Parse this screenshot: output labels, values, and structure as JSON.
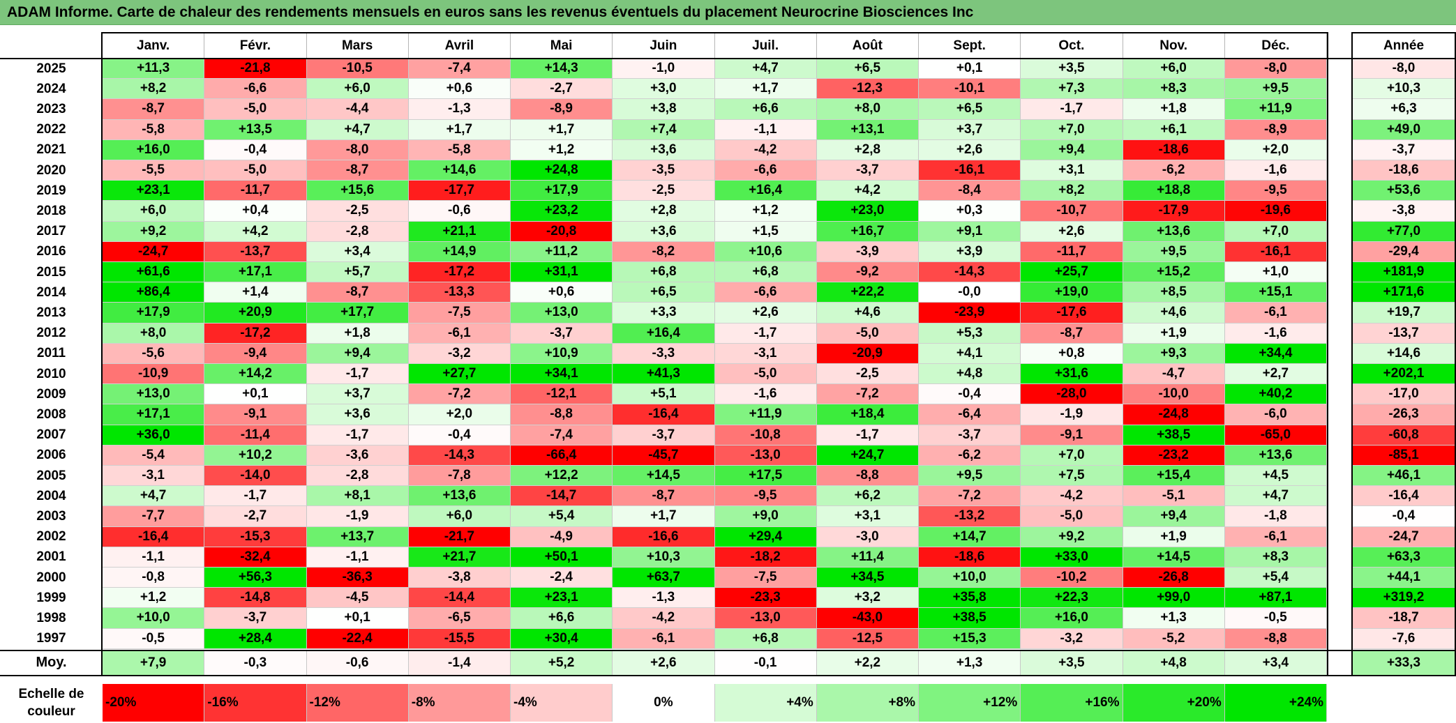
{
  "title": "ADAM Informe. Carte de chaleur des rendements mensuels en euros sans les revenus éventuels du placement Neurocrine Biosciences Inc",
  "colors": {
    "title_bg": "#7dc57d",
    "negative_max": "#ff0000",
    "neutral": "#ffffff",
    "positive_max": "#00e600"
  },
  "chart_data": {
    "type": "heatmap",
    "columns": [
      "Janv.",
      "Févr.",
      "Mars",
      "Avril",
      "Mai",
      "Juin",
      "Juil.",
      "Août",
      "Sept.",
      "Oct.",
      "Nov.",
      "Déc."
    ],
    "annual_header": "Année",
    "rows": [
      {
        "year": "2025",
        "values": [
          "+11,3",
          "-21,8",
          "-10,5",
          "-7,4",
          "+14,3",
          "-1,0",
          "+4,7",
          "+6,5",
          "+0,1",
          "+3,5",
          "+6,0",
          "-8,0"
        ],
        "annual": "-8,0"
      },
      {
        "year": "2024",
        "values": [
          "+8,2",
          "-6,6",
          "+6,0",
          "+0,6",
          "-2,7",
          "+3,0",
          "+1,7",
          "-12,3",
          "-10,1",
          "+7,3",
          "+8,3",
          "+9,5"
        ],
        "annual": "+10,3"
      },
      {
        "year": "2023",
        "values": [
          "-8,7",
          "-5,0",
          "-4,4",
          "-1,3",
          "-8,9",
          "+3,8",
          "+6,6",
          "+8,0",
          "+6,5",
          "-1,7",
          "+1,8",
          "+11,9"
        ],
        "annual": "+6,3"
      },
      {
        "year": "2022",
        "values": [
          "-5,8",
          "+13,5",
          "+4,7",
          "+1,7",
          "+1,7",
          "+7,4",
          "-1,1",
          "+13,1",
          "+3,7",
          "+7,0",
          "+6,1",
          "-8,9"
        ],
        "annual": "+49,0"
      },
      {
        "year": "2021",
        "values": [
          "+16,0",
          "-0,4",
          "-8,0",
          "-5,8",
          "+1,2",
          "+3,6",
          "-4,2",
          "+2,8",
          "+2,6",
          "+9,4",
          "-18,6",
          "+2,0"
        ],
        "annual": "-3,7"
      },
      {
        "year": "2020",
        "values": [
          "-5,5",
          "-5,0",
          "-8,7",
          "+14,6",
          "+24,8",
          "-3,5",
          "-6,6",
          "-3,7",
          "-16,1",
          "+3,1",
          "-6,2",
          "-1,6"
        ],
        "annual": "-18,6"
      },
      {
        "year": "2019",
        "values": [
          "+23,1",
          "-11,7",
          "+15,6",
          "-17,7",
          "+17,9",
          "-2,5",
          "+16,4",
          "+4,2",
          "-8,4",
          "+8,2",
          "+18,8",
          "-9,5"
        ],
        "annual": "+53,6"
      },
      {
        "year": "2018",
        "values": [
          "+6,0",
          "+0,4",
          "-2,5",
          "-0,6",
          "+23,2",
          "+2,8",
          "+1,2",
          "+23,0",
          "+0,3",
          "-10,7",
          "-17,9",
          "-19,6"
        ],
        "annual": "-3,8"
      },
      {
        "year": "2017",
        "values": [
          "+9,2",
          "+4,2",
          "-2,8",
          "+21,1",
          "-20,8",
          "+3,6",
          "+1,5",
          "+16,7",
          "+9,1",
          "+2,6",
          "+13,6",
          "+7,0"
        ],
        "annual": "+77,0"
      },
      {
        "year": "2016",
        "values": [
          "-24,7",
          "-13,7",
          "+3,4",
          "+14,9",
          "+11,2",
          "-8,2",
          "+10,6",
          "-3,9",
          "+3,9",
          "-11,7",
          "+9,5",
          "-16,1"
        ],
        "annual": "-29,4"
      },
      {
        "year": "2015",
        "values": [
          "+61,6",
          "+17,1",
          "+5,7",
          "-17,2",
          "+31,1",
          "+6,8",
          "+6,8",
          "-9,2",
          "-14,3",
          "+25,7",
          "+15,2",
          "+1,0"
        ],
        "annual": "+181,9"
      },
      {
        "year": "2014",
        "values": [
          "+86,4",
          "+1,4",
          "-8,7",
          "-13,3",
          "+0,6",
          "+6,5",
          "-6,6",
          "+22,2",
          "-0,0",
          "+19,0",
          "+8,5",
          "+15,1"
        ],
        "annual": "+171,6"
      },
      {
        "year": "2013",
        "values": [
          "+17,9",
          "+20,9",
          "+17,7",
          "-7,5",
          "+13,0",
          "+3,3",
          "+2,6",
          "+4,6",
          "-23,9",
          "-17,6",
          "+4,6",
          "-6,1"
        ],
        "annual": "+19,7"
      },
      {
        "year": "2012",
        "values": [
          "+8,0",
          "-17,2",
          "+1,8",
          "-6,1",
          "-3,7",
          "+16,4",
          "-1,7",
          "-5,0",
          "+5,3",
          "-8,7",
          "+1,9",
          "-1,6"
        ],
        "annual": "-13,7"
      },
      {
        "year": "2011",
        "values": [
          "-5,6",
          "-9,4",
          "+9,4",
          "-3,2",
          "+10,9",
          "-3,3",
          "-3,1",
          "-20,9",
          "+4,1",
          "+0,8",
          "+9,3",
          "+34,4"
        ],
        "annual": "+14,6"
      },
      {
        "year": "2010",
        "values": [
          "-10,9",
          "+14,2",
          "-1,7",
          "+27,7",
          "+34,1",
          "+41,3",
          "-5,0",
          "-2,5",
          "+4,8",
          "+31,6",
          "-4,7",
          "+2,7"
        ],
        "annual": "+202,1"
      },
      {
        "year": "2009",
        "values": [
          "+13,0",
          "+0,1",
          "+3,7",
          "-7,2",
          "-12,1",
          "+5,1",
          "-1,6",
          "-7,2",
          "-0,4",
          "-28,0",
          "-10,0",
          "+40,2"
        ],
        "annual": "-17,0"
      },
      {
        "year": "2008",
        "values": [
          "+17,1",
          "-9,1",
          "+3,6",
          "+2,0",
          "-8,8",
          "-16,4",
          "+11,9",
          "+18,4",
          "-6,4",
          "-1,9",
          "-24,8",
          "-6,0"
        ],
        "annual": "-26,3"
      },
      {
        "year": "2007",
        "values": [
          "+36,0",
          "-11,4",
          "-1,7",
          "-0,4",
          "-7,4",
          "-3,7",
          "-10,8",
          "-1,7",
          "-3,7",
          "-9,1",
          "+38,5",
          "-65,0"
        ],
        "annual": "-60,8"
      },
      {
        "year": "2006",
        "values": [
          "-5,4",
          "+10,2",
          "-3,6",
          "-14,3",
          "-66,4",
          "-45,7",
          "-13,0",
          "+24,7",
          "-6,2",
          "+7,0",
          "-23,2",
          "+13,6"
        ],
        "annual": "-85,1"
      },
      {
        "year": "2005",
        "values": [
          "-3,1",
          "-14,0",
          "-2,8",
          "-7,8",
          "+12,2",
          "+14,5",
          "+17,5",
          "-8,8",
          "+9,5",
          "+7,5",
          "+15,4",
          "+4,5"
        ],
        "annual": "+46,1"
      },
      {
        "year": "2004",
        "values": [
          "+4,7",
          "-1,7",
          "+8,1",
          "+13,6",
          "-14,7",
          "-8,7",
          "-9,5",
          "+6,2",
          "-7,2",
          "-4,2",
          "-5,1",
          "+4,7"
        ],
        "annual": "-16,4"
      },
      {
        "year": "2003",
        "values": [
          "-7,7",
          "-2,7",
          "-1,9",
          "+6,0",
          "+5,4",
          "+1,7",
          "+9,0",
          "+3,1",
          "-13,2",
          "-5,0",
          "+9,4",
          "-1,8"
        ],
        "annual": "-0,4"
      },
      {
        "year": "2002",
        "values": [
          "-16,4",
          "-15,3",
          "+13,7",
          "-21,7",
          "-4,9",
          "-16,6",
          "+29,4",
          "-3,0",
          "+14,7",
          "+9,2",
          "+1,9",
          "-6,1"
        ],
        "annual": "-24,7"
      },
      {
        "year": "2001",
        "values": [
          "-1,1",
          "-32,4",
          "-1,1",
          "+21,7",
          "+50,1",
          "+10,3",
          "-18,2",
          "+11,4",
          "-18,6",
          "+33,0",
          "+14,5",
          "+8,3"
        ],
        "annual": "+63,3"
      },
      {
        "year": "2000",
        "values": [
          "-0,8",
          "+56,3",
          "-36,3",
          "-3,8",
          "-2,4",
          "+63,7",
          "-7,5",
          "+34,5",
          "+10,0",
          "-10,2",
          "-26,8",
          "+5,4"
        ],
        "annual": "+44,1"
      },
      {
        "year": "1999",
        "values": [
          "+1,2",
          "-14,8",
          "-4,5",
          "-14,4",
          "+23,1",
          "-1,3",
          "-23,3",
          "+3,2",
          "+35,8",
          "+22,3",
          "+99,0",
          "+87,1"
        ],
        "annual": "+319,2"
      },
      {
        "year": "1998",
        "values": [
          "+10,0",
          "-3,7",
          "+0,1",
          "-6,5",
          "+6,6",
          "-4,2",
          "-13,0",
          "-43,0",
          "+38,5",
          "+16,0",
          "+1,3",
          "-0,5"
        ],
        "annual": "-18,7"
      },
      {
        "year": "1997",
        "values": [
          "-0,5",
          "+28,4",
          "-22,4",
          "-15,5",
          "+30,4",
          "-6,1",
          "+6,8",
          "-12,5",
          "+15,3",
          "-3,2",
          "-5,2",
          "-8,8"
        ],
        "annual": "-7,6"
      }
    ],
    "average": {
      "label": "Moy.",
      "values": [
        "+7,9",
        "-0,3",
        "-0,6",
        "-1,4",
        "+5,2",
        "+2,6",
        "-0,1",
        "+2,2",
        "+1,3",
        "+3,5",
        "+4,8",
        "+3,4"
      ],
      "annual": "+33,3"
    },
    "scale": {
      "label": [
        "Echelle de",
        "couleur"
      ],
      "stops": [
        "-20%",
        "-16%",
        "-12%",
        "-8%",
        "-4%",
        "0%",
        "+4%",
        "+8%",
        "+12%",
        "+16%",
        "+20%",
        "+24%"
      ],
      "values": [
        -20,
        -16,
        -12,
        -8,
        -4,
        0,
        4,
        8,
        12,
        16,
        20,
        24
      ]
    }
  }
}
